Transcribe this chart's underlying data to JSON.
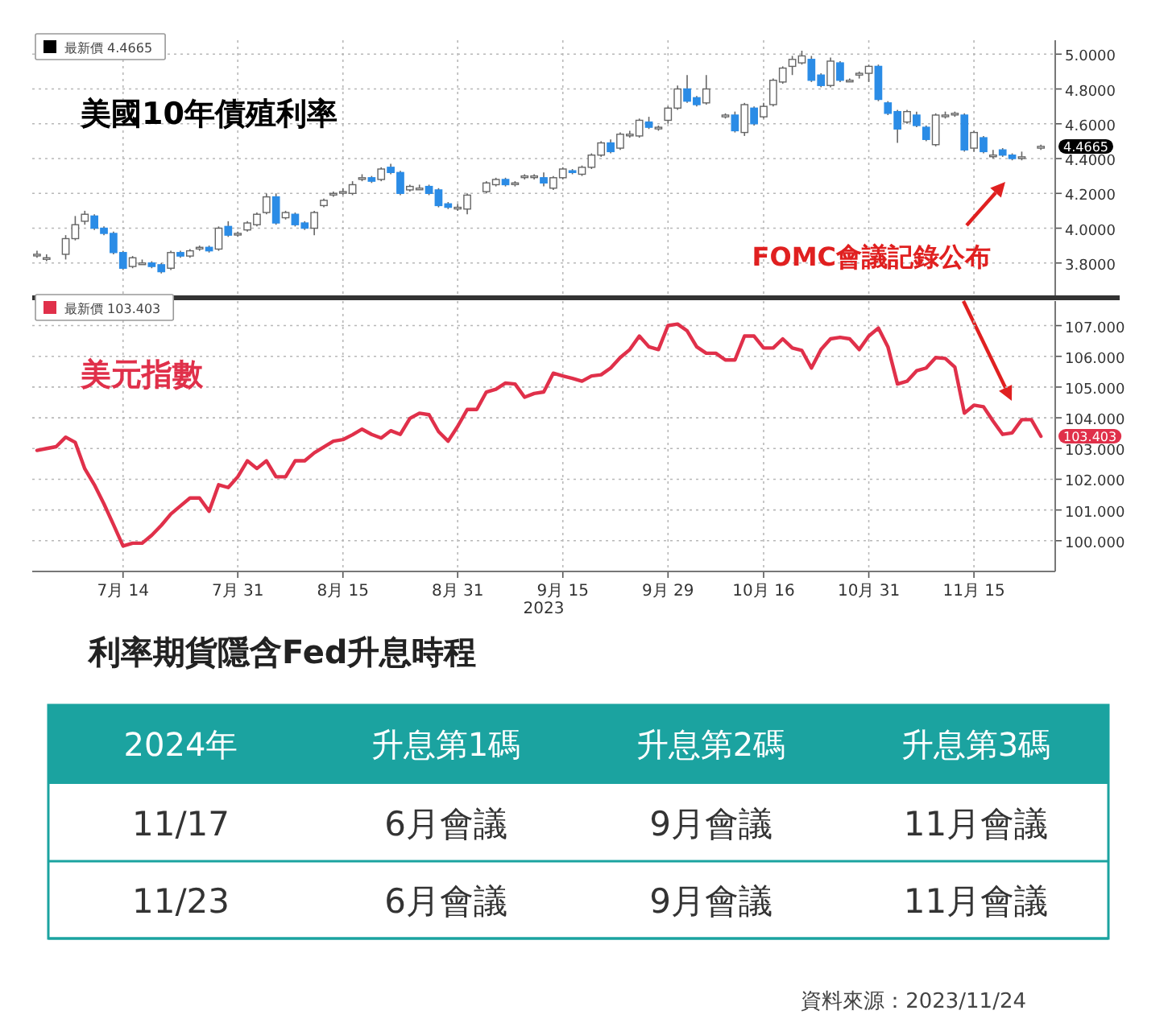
{
  "chart_data": [
    {
      "type": "candlestick",
      "title": "美國10年債殖利率",
      "categories": [
        null,
        null,
        null,
        null,
        null,
        null,
        null,
        null,
        null,
        null,
        null,
        null,
        null,
        null,
        null,
        null,
        null,
        null,
        null,
        null,
        null,
        null,
        null,
        null,
        null,
        null,
        null,
        null,
        null,
        null,
        null,
        null,
        null,
        null,
        null,
        null,
        null,
        null,
        null,
        null,
        null,
        null,
        null,
        null,
        null,
        null,
        null,
        null,
        null,
        null,
        null,
        null,
        null,
        null,
        null,
        null,
        null,
        null,
        null,
        null,
        null,
        null,
        null,
        null,
        null,
        null,
        null,
        null,
        null,
        null,
        null,
        null,
        null,
        null,
        null,
        null,
        null,
        null,
        null,
        null,
        null,
        null,
        null,
        null,
        null,
        null,
        null,
        null,
        null,
        null,
        null,
        null,
        null,
        null,
        null,
        null,
        null,
        null,
        null,
        null,
        null,
        null,
        null,
        null,
        null,
        null,
        null
      ],
      "series": [
        {
          "name": "最新價 4.4665",
          "ohlc": [
            [
              3.85,
              3.87,
              3.83,
              3.85
            ],
            [
              3.83,
              3.85,
              3.81,
              3.83
            ],
            null,
            [
              3.85,
              3.96,
              3.82,
              3.94
            ],
            [
              3.94,
              4.07,
              3.93,
              4.02
            ],
            [
              4.04,
              4.1,
              4.02,
              4.08
            ],
            [
              4.07,
              4.08,
              3.99,
              4.0
            ],
            [
              4.0,
              4.01,
              3.96,
              3.97
            ],
            [
              3.97,
              3.98,
              3.85,
              3.86
            ],
            [
              3.86,
              3.87,
              3.76,
              3.77
            ],
            [
              3.78,
              3.84,
              3.77,
              3.83
            ],
            [
              3.8,
              3.82,
              3.79,
              3.8
            ],
            [
              3.8,
              3.81,
              3.77,
              3.78
            ],
            [
              3.79,
              3.8,
              3.74,
              3.75
            ],
            [
              3.77,
              3.87,
              3.76,
              3.86
            ],
            [
              3.86,
              3.87,
              3.83,
              3.84
            ],
            [
              3.84,
              3.88,
              3.83,
              3.87
            ],
            [
              3.89,
              3.9,
              3.87,
              3.89
            ],
            [
              3.89,
              3.9,
              3.86,
              3.87
            ],
            [
              3.88,
              4.01,
              3.87,
              4.0
            ],
            [
              4.01,
              4.04,
              3.95,
              3.96
            ],
            [
              3.97,
              3.98,
              3.95,
              3.97
            ],
            [
              3.99,
              4.04,
              3.98,
              4.03
            ],
            [
              4.02,
              4.09,
              4.01,
              4.08
            ],
            [
              4.09,
              4.2,
              4.08,
              4.18
            ],
            [
              4.18,
              4.2,
              4.02,
              4.03
            ],
            [
              4.06,
              4.1,
              4.05,
              4.09
            ],
            [
              4.08,
              4.09,
              4.01,
              4.02
            ],
            [
              4.03,
              4.04,
              3.99,
              4.0
            ],
            [
              4.0,
              4.1,
              3.96,
              4.09
            ],
            [
              4.13,
              4.17,
              4.12,
              4.16
            ],
            [
              4.2,
              4.21,
              4.18,
              4.2
            ],
            [
              4.21,
              4.23,
              4.19,
              4.21
            ],
            [
              4.2,
              4.27,
              4.19,
              4.25
            ],
            [
              4.29,
              4.31,
              4.27,
              4.29
            ],
            [
              4.29,
              4.3,
              4.26,
              4.27
            ],
            [
              4.28,
              4.35,
              4.27,
              4.34
            ],
            [
              4.35,
              4.37,
              4.31,
              4.32
            ],
            [
              4.32,
              4.33,
              4.19,
              4.2
            ],
            [
              4.22,
              4.25,
              4.21,
              4.24
            ],
            [
              4.23,
              4.25,
              4.22,
              4.23
            ],
            [
              4.24,
              4.25,
              4.19,
              4.2
            ],
            [
              4.22,
              4.23,
              4.12,
              4.13
            ],
            [
              4.14,
              4.15,
              4.11,
              4.12
            ],
            [
              4.12,
              4.14,
              4.1,
              4.12
            ],
            [
              4.11,
              4.2,
              4.08,
              4.19
            ],
            null,
            [
              4.21,
              4.27,
              4.2,
              4.26
            ],
            [
              4.25,
              4.29,
              4.24,
              4.28
            ],
            [
              4.28,
              4.29,
              4.24,
              4.25
            ],
            [
              4.26,
              4.27,
              4.24,
              4.26
            ],
            [
              4.3,
              4.31,
              4.28,
              4.3
            ],
            [
              4.3,
              4.31,
              4.28,
              4.3
            ],
            [
              4.29,
              4.32,
              4.24,
              4.26
            ],
            [
              4.23,
              4.3,
              4.22,
              4.29
            ],
            [
              4.29,
              4.35,
              4.28,
              4.34
            ],
            [
              4.33,
              4.34,
              4.31,
              4.32
            ],
            [
              4.31,
              4.36,
              4.3,
              4.35
            ],
            [
              4.35,
              4.43,
              4.34,
              4.42
            ],
            [
              4.42,
              4.5,
              4.41,
              4.49
            ],
            [
              4.49,
              4.51,
              4.43,
              4.44
            ],
            [
              4.46,
              4.55,
              4.45,
              4.54
            ],
            [
              4.54,
              4.56,
              4.52,
              4.54
            ],
            [
              4.53,
              4.63,
              4.52,
              4.62
            ],
            [
              4.61,
              4.64,
              4.57,
              4.58
            ],
            [
              4.58,
              4.59,
              4.56,
              4.58
            ],
            [
              4.62,
              4.7,
              4.6,
              4.69
            ],
            [
              4.69,
              4.82,
              4.68,
              4.8
            ],
            [
              4.8,
              4.88,
              4.72,
              4.73
            ],
            [
              4.75,
              4.76,
              4.7,
              4.71
            ],
            [
              4.72,
              4.88,
              4.71,
              4.8
            ],
            null,
            [
              4.64,
              4.66,
              4.63,
              4.65
            ],
            [
              4.65,
              4.67,
              4.55,
              4.56
            ],
            [
              4.55,
              4.72,
              4.53,
              4.71
            ],
            [
              4.69,
              4.7,
              4.59,
              4.6
            ],
            [
              4.64,
              4.72,
              4.63,
              4.7
            ],
            [
              4.71,
              4.86,
              4.7,
              4.85
            ],
            [
              4.84,
              4.93,
              4.83,
              4.92
            ],
            [
              4.93,
              4.99,
              4.88,
              4.97
            ],
            [
              4.95,
              5.02,
              4.94,
              4.99
            ],
            [
              4.97,
              4.99,
              4.84,
              4.85
            ],
            [
              4.88,
              4.89,
              4.81,
              4.82
            ],
            [
              4.82,
              4.98,
              4.81,
              4.96
            ],
            [
              4.95,
              4.96,
              4.84,
              4.85
            ],
            [
              4.85,
              4.86,
              4.84,
              4.85
            ],
            [
              4.88,
              4.9,
              4.86,
              4.89
            ],
            [
              4.89,
              4.94,
              4.84,
              4.93
            ],
            [
              4.93,
              4.94,
              4.73,
              4.74
            ],
            [
              4.72,
              4.73,
              4.65,
              4.66
            ],
            [
              4.67,
              4.68,
              4.49,
              4.57
            ],
            [
              4.61,
              4.68,
              4.6,
              4.67
            ],
            [
              4.65,
              4.67,
              4.58,
              4.59
            ],
            [
              4.58,
              4.59,
              4.5,
              4.51
            ],
            [
              4.48,
              4.66,
              4.47,
              4.65
            ],
            [
              4.65,
              4.67,
              4.63,
              4.65
            ],
            [
              4.66,
              4.67,
              4.64,
              4.66
            ],
            [
              4.65,
              4.66,
              4.44,
              4.45
            ],
            [
              4.46,
              4.56,
              4.44,
              4.55
            ],
            [
              4.52,
              4.53,
              4.43,
              4.44
            ],
            [
              4.42,
              4.45,
              4.4,
              4.42
            ],
            [
              4.45,
              4.46,
              4.41,
              4.42
            ],
            [
              4.42,
              4.43,
              4.39,
              4.4
            ],
            [
              4.41,
              4.44,
              4.39,
              4.41
            ],
            null,
            [
              4.46,
              4.48,
              4.45,
              4.47
            ],
            null
          ]
        }
      ],
      "ylim": [
        3.6,
        5.08
      ],
      "yticks": [
        {
          "value": 3.8,
          "label": "3.8000"
        },
        {
          "value": 4.0,
          "label": "4.0000"
        },
        {
          "value": 4.2,
          "label": "4.2000"
        },
        {
          "value": 4.4,
          "label": "4.4000"
        },
        {
          "value": 4.6,
          "label": "4.6000"
        },
        {
          "value": 4.8,
          "label": "4.8000"
        },
        {
          "value": 5.0,
          "label": "5.0000"
        }
      ],
      "tick_labels": "y",
      "grid": true,
      "legend": "top left",
      "annotations": [
        "4.4665",
        "FOMC會議記錄公布"
      ]
    },
    {
      "type": "line",
      "title": "美元指數",
      "categories": [
        null,
        null,
        null,
        null,
        null,
        null,
        null,
        null,
        null,
        "7月 14",
        null,
        null,
        null,
        null,
        null,
        null,
        null,
        null,
        null,
        null,
        null,
        "7月 31",
        null,
        null,
        null,
        null,
        null,
        null,
        null,
        null,
        null,
        null,
        "8月 15",
        null,
        null,
        null,
        null,
        null,
        null,
        null,
        null,
        null,
        null,
        null,
        "8月 31",
        null,
        null,
        null,
        null,
        null,
        null,
        null,
        null,
        null,
        null,
        "9月 15",
        null,
        null,
        null,
        null,
        null,
        null,
        null,
        null,
        null,
        null,
        "9月 29",
        null,
        null,
        null,
        null,
        null,
        null,
        null,
        null,
        null,
        "10月 16",
        null,
        null,
        null,
        null,
        null,
        null,
        null,
        null,
        null,
        null,
        "10月 31",
        null,
        null,
        null,
        null,
        null,
        null,
        null,
        null,
        null,
        null,
        "11月 15",
        null,
        null,
        null,
        null,
        null,
        null,
        null,
        null
      ],
      "series": [
        {
          "name": "最新價 103.403",
          "color": "#e0304a",
          "values": [
            102.94,
            103.0,
            103.06,
            103.37,
            103.2,
            102.34,
            101.82,
            101.2,
            100.52,
            99.83,
            99.92,
            99.92,
            100.18,
            100.5,
            100.87,
            101.13,
            101.39,
            101.39,
            100.96,
            101.82,
            101.73,
            102.08,
            102.6,
            102.35,
            102.6,
            102.08,
            102.08,
            102.6,
            102.6,
            102.86,
            103.05,
            103.24,
            103.29,
            103.45,
            103.63,
            103.46,
            103.34,
            103.58,
            103.46,
            103.98,
            104.15,
            104.1,
            103.55,
            103.24,
            103.72,
            104.27,
            104.27,
            104.84,
            104.93,
            105.13,
            105.1,
            104.67,
            104.79,
            104.84,
            105.45,
            105.36,
            105.28,
            105.19,
            105.36,
            105.4,
            105.62,
            105.96,
            106.22,
            106.66,
            106.31,
            106.22,
            107.0,
            107.05,
            106.83,
            106.31,
            106.1,
            106.1,
            105.88,
            105.88,
            106.66,
            106.66,
            106.27,
            106.27,
            106.57,
            106.27,
            106.19,
            105.62,
            106.22,
            106.57,
            106.62,
            106.57,
            106.22,
            106.66,
            106.92,
            106.31,
            105.1,
            105.19,
            105.53,
            105.62,
            105.96,
            105.93,
            105.65,
            104.15,
            104.41,
            104.36,
            103.89,
            103.46,
            103.51,
            103.94,
            103.94,
            103.4,
            null
          ]
        }
      ],
      "xlabel": "2023",
      "ylim": [
        99,
        107.8
      ],
      "yticks": [
        {
          "value": 100,
          "label": "100.000"
        },
        {
          "value": 101,
          "label": "101.000"
        },
        {
          "value": 102,
          "label": "102.000"
        },
        {
          "value": 103,
          "label": "103.000"
        },
        {
          "value": 104,
          "label": "104.000"
        },
        {
          "value": 105,
          "label": "105.000"
        },
        {
          "value": 106,
          "label": "106.000"
        },
        {
          "value": 107,
          "label": "107.000"
        }
      ],
      "grid": true,
      "legend": "top left",
      "annotations": [
        "103.403"
      ]
    },
    {
      "type": "other",
      "title": "利率期貨隱含Fed升息時程",
      "categories": [
        "2024年",
        "升息第1碼",
        "升息第2碼",
        "升息第3碼"
      ],
      "y_categories": [
        "11/17",
        "11/23"
      ],
      "cell_labels": [
        [
          "6月會議",
          "9月會議",
          "11月會議"
        ],
        [
          "6月會議",
          "9月會議",
          "11月會議"
        ]
      ],
      "annotations": [
        "資料來源：2023/11/24"
      ]
    }
  ]
}
